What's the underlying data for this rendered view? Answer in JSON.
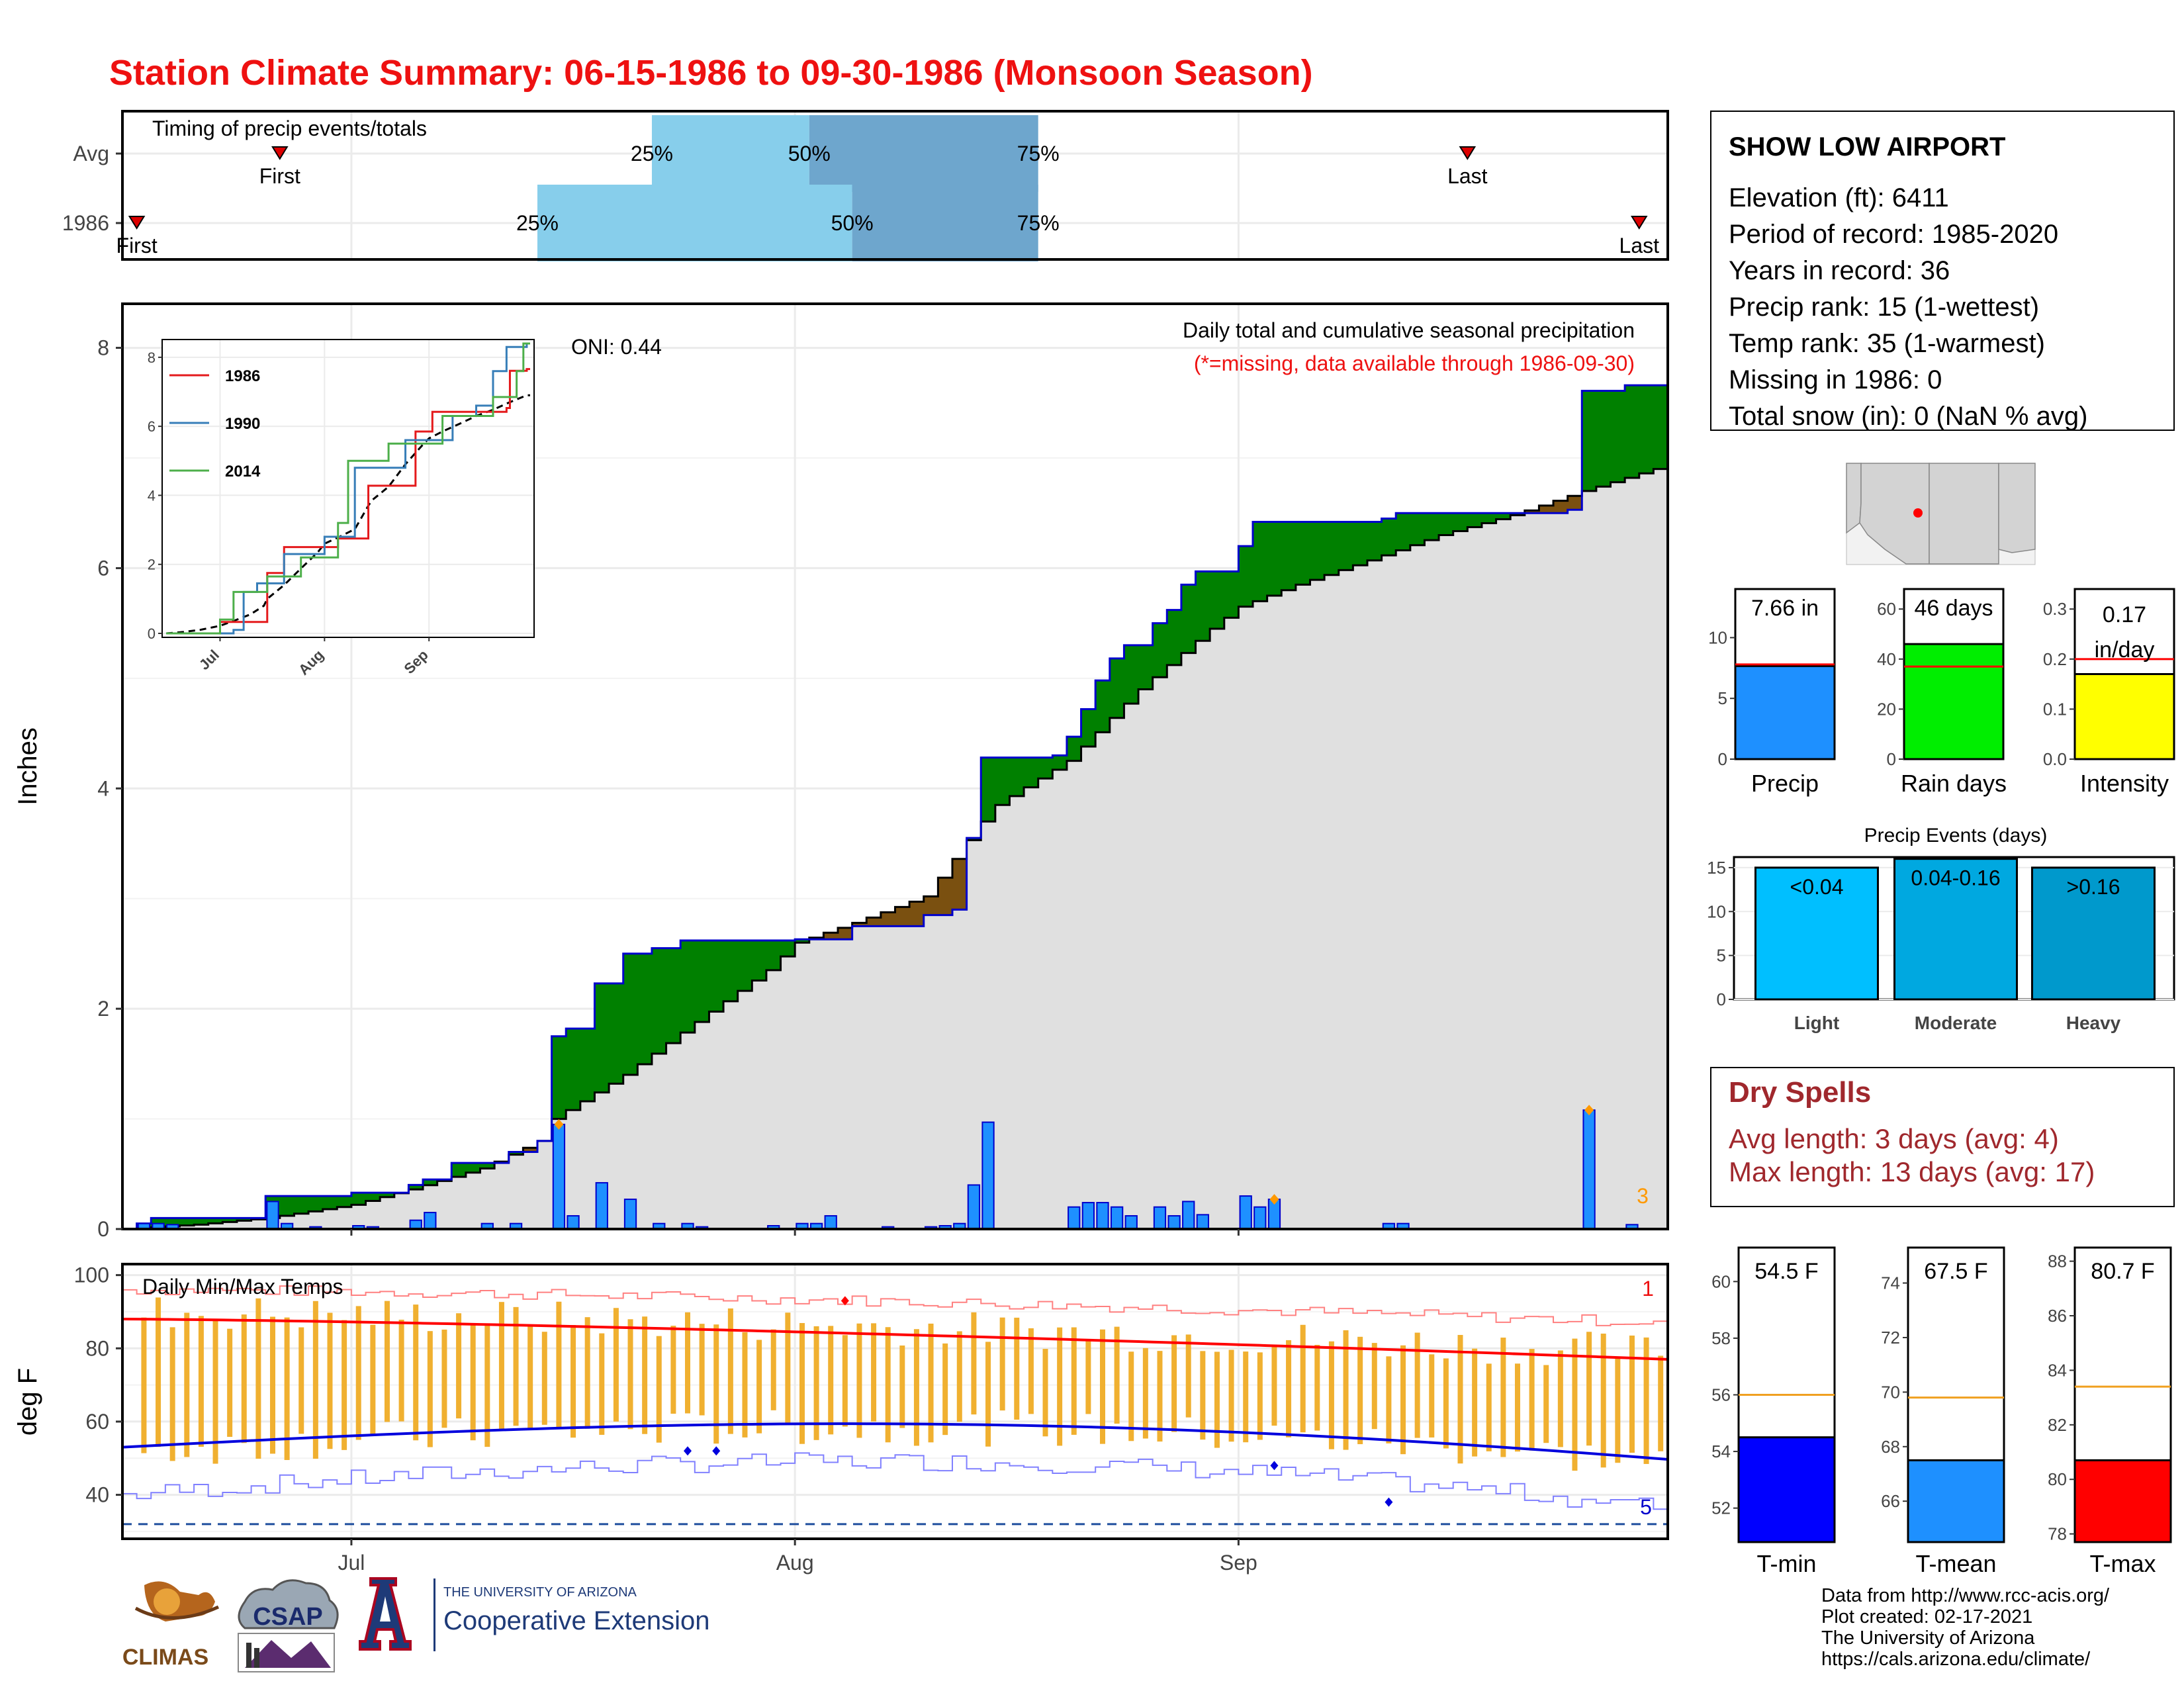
{
  "title": "Station Climate Summary: 06-15-1986 to 09-30-1986 (Monsoon Season)",
  "colors": {
    "title_red": "#ee1111",
    "precip_bar": "#1e90ff",
    "precip_line": "#0000cc",
    "above_avg_fill": "#008000",
    "below_avg_fill": "#7a5010",
    "climo_fill": "#e0e0e0",
    "quartile_light": "#87ceeb",
    "quartile_dark": "#6ea6cd",
    "temp_range": "#f0b030",
    "tmax_line": "#ff0000",
    "tmin_line": "#0000dd",
    "dryspell_text": "#a0282d"
  },
  "timing": {
    "title": "Timing of precip events/totals",
    "rows": [
      {
        "label": "Avg",
        "first": "First",
        "last": "Last",
        "q25": "25%",
        "q50": "50%",
        "q75": "75%",
        "first_date": "1986-06-26",
        "last_date": "1986-09-17",
        "q25_date": "1986-07-22",
        "q50_date": "1986-08-02",
        "q75_date": "1986-08-18"
      },
      {
        "label": "1986",
        "first": "First",
        "last": "Last",
        "q25": "25%",
        "q50": "50%",
        "q75": "75%",
        "first_date": "1986-06-16",
        "last_date": "1986-09-29",
        "q25_date": "1986-07-14",
        "q50_date": "1986-08-05",
        "q75_date": "1986-08-18"
      }
    ]
  },
  "precip_panel": {
    "y_label": "Inches",
    "y_ticks": [
      "0",
      "2",
      "4",
      "6",
      "8"
    ],
    "oni": "ONI: 0.44",
    "subtitle": "Daily total and cumulative seasonal precipitation",
    "missing_note": "(*=missing, data available through 1986-09-30)",
    "corner_count": "3"
  },
  "inset": {
    "y_ticks": [
      "0",
      "2",
      "4",
      "6",
      "8"
    ],
    "x_ticks": [
      "Jul",
      "Aug",
      "Sep"
    ],
    "legend": [
      {
        "name": "1986",
        "color": "#e41a1c"
      },
      {
        "name": "1990",
        "color": "#377eb8"
      },
      {
        "name": "2014",
        "color": "#4daf4a"
      }
    ]
  },
  "temp_panel": {
    "y_label": "deg F",
    "y_ticks": [
      "40",
      "60",
      "80",
      "100"
    ],
    "title": "Daily Min/Max Temps",
    "corner_top": "1",
    "corner_bottom": "5",
    "x_ticks": [
      "Jul",
      "Aug",
      "Sep"
    ]
  },
  "station": {
    "name": "SHOW LOW AIRPORT",
    "lines": [
      "Elevation (ft): 6411",
      "Period of record: 1985-2020",
      "Years in record: 36",
      "Precip rank: 15 (1-wettest)",
      "Temp rank: 35 (1-warmest)",
      "Missing in 1986: 0",
      "Total snow (in): 0 (NaN % avg)"
    ]
  },
  "summary_bars": [
    {
      "label": "Precip",
      "value_label": "7.66 in",
      "value": 7.66,
      "avg": 7.8,
      "ymax": 14,
      "ticks": [
        "0",
        "5",
        "10"
      ],
      "tick_vals": [
        0,
        5,
        10
      ],
      "color": "#1e90ff"
    },
    {
      "label": "Rain days",
      "value_label": "46 days",
      "value": 46,
      "avg": 37,
      "ymax": 68,
      "ticks": [
        "0",
        "20",
        "40",
        "60"
      ],
      "tick_vals": [
        0,
        20,
        40,
        60
      ],
      "color": "#00ee00"
    },
    {
      "label": "Intensity",
      "value_label_1": "0.17",
      "value_label_2": "in/day",
      "value": 0.17,
      "avg": 0.2,
      "ymax": 0.34,
      "ticks": [
        "0.0",
        "0.1",
        "0.2",
        "0.3"
      ],
      "tick_vals": [
        0,
        0.1,
        0.2,
        0.3
      ],
      "color": "#ffff00"
    }
  ],
  "events": {
    "title": "Precip Events (days)",
    "ticks": [
      "0",
      "5",
      "10",
      "15"
    ],
    "bars": [
      {
        "label": "Light",
        "inner": "<0.04",
        "value": 15,
        "color": "#00bfff"
      },
      {
        "label": "Moderate",
        "inner": "0.04-0.16",
        "value": 16,
        "color": "#00a8e0"
      },
      {
        "label": "Heavy",
        "inner": ">0.16",
        "value": 15,
        "color": "#0099cc"
      }
    ]
  },
  "dry_spells": {
    "title": "Dry Spells",
    "avg": "Avg length: 3 days (avg: 4)",
    "max": "Max length: 13 days (avg: 17)"
  },
  "temp_bars": [
    {
      "label": "T-min",
      "value_label": "54.5 F",
      "value": 54.5,
      "avg": 56,
      "ymin": 50.8,
      "ymax": 61.2,
      "ticks": [
        "52",
        "54",
        "56",
        "58",
        "60"
      ],
      "color": "#0000ff"
    },
    {
      "label": "T-mean",
      "value_label": "67.5 F",
      "value": 67.5,
      "avg": 69.8,
      "ymin": 64.5,
      "ymax": 75.3,
      "ticks": [
        "66",
        "68",
        "70",
        "72",
        "74"
      ],
      "color": "#1e90ff"
    },
    {
      "label": "T-max",
      "value_label": "80.7 F",
      "value": 80.7,
      "avg": 83.4,
      "ymin": 77.7,
      "ymax": 88.5,
      "ticks": [
        "78",
        "80",
        "82",
        "84",
        "86",
        "88"
      ],
      "color": "#ff0000"
    }
  ],
  "footer": {
    "lines": [
      "Data from http://www.rcc-acis.org/",
      "Plot created: 02-17-2021",
      "The University of Arizona",
      "https://cals.arizona.edu/climate/"
    ],
    "climas": "CLIMAS",
    "csap": "CSAP",
    "ua_small": "THE UNIVERSITY OF ARIZONA",
    "ua_big": "Cooperative Extension"
  },
  "chart_data": [
    {
      "type": "bar",
      "name": "daily_precip_1986",
      "y_label": "Inches",
      "ylim": [
        0,
        8.4
      ],
      "date_range": [
        "1986-06-15",
        "1986-09-30"
      ],
      "daily": [
        [
          "1986-06-16",
          0.05
        ],
        [
          "1986-06-17",
          0.05
        ],
        [
          "1986-06-18",
          0.04
        ],
        [
          "1986-06-25",
          0.25
        ],
        [
          "1986-06-26",
          0.05
        ],
        [
          "1986-06-28",
          0.02
        ],
        [
          "1986-07-01",
          0.03
        ],
        [
          "1986-07-02",
          0.02
        ],
        [
          "1986-07-05",
          0.08
        ],
        [
          "1986-07-06",
          0.15
        ],
        [
          "1986-07-10",
          0.05
        ],
        [
          "1986-07-12",
          0.05
        ],
        [
          "1986-07-15",
          0.95
        ],
        [
          "1986-07-16",
          0.12
        ],
        [
          "1986-07-18",
          0.42
        ],
        [
          "1986-07-20",
          0.27
        ],
        [
          "1986-07-22",
          0.05
        ],
        [
          "1986-07-24",
          0.05
        ],
        [
          "1986-07-25",
          0.02
        ],
        [
          "1986-07-30",
          0.03
        ],
        [
          "1986-08-01",
          0.05
        ],
        [
          "1986-08-02",
          0.05
        ],
        [
          "1986-08-03",
          0.12
        ],
        [
          "1986-08-07",
          0.02
        ],
        [
          "1986-08-10",
          0.02
        ],
        [
          "1986-08-11",
          0.03
        ],
        [
          "1986-08-12",
          0.05
        ],
        [
          "1986-08-13",
          0.4
        ],
        [
          "1986-08-14",
          0.97
        ],
        [
          "1986-08-20",
          0.2
        ],
        [
          "1986-08-21",
          0.24
        ],
        [
          "1986-08-22",
          0.24
        ],
        [
          "1986-08-23",
          0.2
        ],
        [
          "1986-08-24",
          0.12
        ],
        [
          "1986-08-26",
          0.2
        ],
        [
          "1986-08-27",
          0.12
        ],
        [
          "1986-08-28",
          0.25
        ],
        [
          "1986-08-29",
          0.13
        ],
        [
          "1986-09-01",
          0.3
        ],
        [
          "1986-09-02",
          0.2
        ],
        [
          "1986-09-03",
          0.27
        ],
        [
          "1986-09-11",
          0.05
        ],
        [
          "1986-09-12",
          0.05
        ],
        [
          "1986-09-25",
          1.08
        ],
        [
          "1986-09-28",
          0.04
        ]
      ],
      "cumulative_1986": [
        [
          "1986-06-15",
          0.0
        ],
        [
          "1986-06-16",
          0.05
        ],
        [
          "1986-06-17",
          0.1
        ],
        [
          "1986-06-25",
          0.3
        ],
        [
          "1986-07-01",
          0.33
        ],
        [
          "1986-07-05",
          0.4
        ],
        [
          "1986-07-06",
          0.45
        ],
        [
          "1986-07-08",
          0.6
        ],
        [
          "1986-07-12",
          0.7
        ],
        [
          "1986-07-14",
          0.8
        ],
        [
          "1986-07-15",
          1.75
        ],
        [
          "1986-07-16",
          1.82
        ],
        [
          "1986-07-18",
          2.23
        ],
        [
          "1986-07-20",
          2.5
        ],
        [
          "1986-07-22",
          2.55
        ],
        [
          "1986-07-24",
          2.62
        ],
        [
          "1986-08-01",
          2.63
        ],
        [
          "1986-08-05",
          2.75
        ],
        [
          "1986-08-10",
          2.85
        ],
        [
          "1986-08-12",
          2.9
        ],
        [
          "1986-08-13",
          3.55
        ],
        [
          "1986-08-14",
          4.28
        ],
        [
          "1986-08-19",
          4.3
        ],
        [
          "1986-08-20",
          4.47
        ],
        [
          "1986-08-21",
          4.72
        ],
        [
          "1986-08-22",
          4.98
        ],
        [
          "1986-08-23",
          5.18
        ],
        [
          "1986-08-24",
          5.3
        ],
        [
          "1986-08-26",
          5.5
        ],
        [
          "1986-08-27",
          5.62
        ],
        [
          "1986-08-28",
          5.85
        ],
        [
          "1986-08-29",
          5.97
        ],
        [
          "1986-09-01",
          6.2
        ],
        [
          "1986-09-02",
          6.42
        ],
        [
          "1986-09-11",
          6.45
        ],
        [
          "1986-09-12",
          6.5
        ],
        [
          "1986-09-24",
          6.53
        ],
        [
          "1986-09-25",
          7.61
        ],
        [
          "1986-09-28",
          7.66
        ],
        [
          "1986-09-30",
          7.66
        ]
      ],
      "cumulative_avg": [
        [
          "1986-06-15",
          0.0
        ],
        [
          "1986-06-20",
          0.04
        ],
        [
          "1986-06-25",
          0.1
        ],
        [
          "1986-07-01",
          0.22
        ],
        [
          "1986-07-05",
          0.36
        ],
        [
          "1986-07-10",
          0.55
        ],
        [
          "1986-07-14",
          0.8
        ],
        [
          "1986-07-15",
          1.0
        ],
        [
          "1986-07-20",
          1.4
        ],
        [
          "1986-07-25",
          1.88
        ],
        [
          "1986-07-30",
          2.35
        ],
        [
          "1986-08-01",
          2.6
        ],
        [
          "1986-08-05",
          2.78
        ],
        [
          "1986-08-10",
          3.02
        ],
        [
          "1986-08-14",
          3.7
        ],
        [
          "1986-08-15",
          3.85
        ],
        [
          "1986-08-20",
          4.25
        ],
        [
          "1986-08-25",
          4.9
        ],
        [
          "1986-08-30",
          5.45
        ],
        [
          "1986-09-01",
          5.65
        ],
        [
          "1986-09-05",
          5.85
        ],
        [
          "1986-09-10",
          6.07
        ],
        [
          "1986-09-15",
          6.3
        ],
        [
          "1986-09-20",
          6.48
        ],
        [
          "1986-09-25",
          6.7
        ],
        [
          "1986-09-30",
          6.9
        ]
      ]
    },
    {
      "type": "line",
      "name": "inset_cumulative",
      "ylim": [
        0,
        8.4
      ],
      "series": [
        {
          "name": "1986",
          "points": [
            [
              "1986-06-15",
              0.0
            ],
            [
              "1986-07-01",
              0.33
            ],
            [
              "1986-07-15",
              1.75
            ],
            [
              "1986-07-20",
              2.5
            ],
            [
              "1986-08-05",
              2.75
            ],
            [
              "1986-08-14",
              4.28
            ],
            [
              "1986-08-28",
              5.85
            ],
            [
              "1986-09-02",
              6.42
            ],
            [
              "1986-09-24",
              6.53
            ],
            [
              "1986-09-25",
              7.61
            ],
            [
              "1986-09-30",
              7.66
            ]
          ]
        },
        {
          "name": "1990",
          "points": [
            [
              "1986-06-15",
              0.0
            ],
            [
              "1986-07-05",
              0.1
            ],
            [
              "1986-07-08",
              1.2
            ],
            [
              "1986-07-12",
              1.45
            ],
            [
              "1986-07-20",
              2.3
            ],
            [
              "1986-08-01",
              2.8
            ],
            [
              "1986-08-10",
              4.8
            ],
            [
              "1986-08-25",
              5.6
            ],
            [
              "1986-09-08",
              6.3
            ],
            [
              "1986-09-15",
              6.6
            ],
            [
              "1986-09-20",
              7.6
            ],
            [
              "1986-09-24",
              8.3
            ],
            [
              "1986-09-30",
              8.4
            ]
          ]
        },
        {
          "name": "2014",
          "points": [
            [
              "1986-06-15",
              0.0
            ],
            [
              "1986-07-01",
              0.4
            ],
            [
              "1986-07-05",
              1.2
            ],
            [
              "1986-07-15",
              1.65
            ],
            [
              "1986-07-25",
              2.2
            ],
            [
              "1986-08-05",
              3.2
            ],
            [
              "1986-08-08",
              5.0
            ],
            [
              "1986-08-20",
              5.5
            ],
            [
              "1986-09-05",
              6.3
            ],
            [
              "1986-09-20",
              6.85
            ],
            [
              "1986-09-27",
              7.6
            ],
            [
              "1986-09-29",
              8.4
            ]
          ]
        }
      ]
    },
    {
      "type": "line",
      "name": "daily_temps",
      "y_label": "deg F",
      "ylim": [
        28,
        103
      ],
      "freeze_line": 32
    }
  ]
}
